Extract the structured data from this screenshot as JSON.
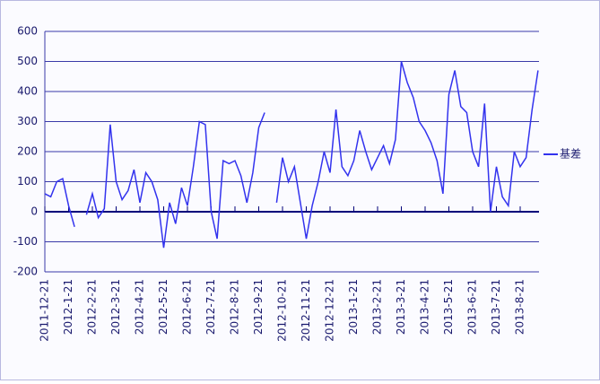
{
  "chart_data": {
    "type": "line",
    "categories": [
      "2011-12-21",
      null,
      null,
      null,
      "2012-1-21",
      null,
      null,
      null,
      "2012-2-21",
      null,
      null,
      null,
      "2012-3-21",
      null,
      null,
      null,
      "2012-4-21",
      null,
      null,
      null,
      "2012-5-21",
      null,
      null,
      null,
      "2012-6-21",
      null,
      null,
      null,
      "2012-7-21",
      null,
      null,
      null,
      "2012-8-21",
      null,
      null,
      null,
      "2012-9-21",
      null,
      null,
      null,
      "2012-10-21",
      null,
      null,
      null,
      "2012-11-21",
      null,
      null,
      null,
      "2012-12-21",
      null,
      null,
      null,
      "2013-1-21",
      null,
      null,
      null,
      "2013-2-21",
      null,
      null,
      null,
      "2013-3-21",
      null,
      null,
      null,
      "2013-4-21",
      null,
      null,
      null,
      "2013-5-21",
      null,
      null,
      null,
      "2013-6-21",
      null,
      null,
      null,
      "2013-7-21",
      null,
      null,
      null,
      "2013-8-21",
      null,
      null,
      null
    ],
    "series": [
      {
        "name": "基差",
        "color": "#3333ee",
        "values": [
          60,
          50,
          100,
          110,
          20,
          -50,
          null,
          -10,
          60,
          -20,
          10,
          290,
          100,
          40,
          70,
          140,
          30,
          130,
          100,
          40,
          -120,
          30,
          -40,
          80,
          20,
          150,
          300,
          290,
          0,
          -90,
          170,
          160,
          170,
          120,
          30,
          130,
          280,
          330,
          null,
          30,
          180,
          100,
          150,
          30,
          -90,
          20,
          100,
          200,
          130,
          340,
          150,
          120,
          170,
          270,
          200,
          140,
          180,
          220,
          160,
          240,
          500,
          430,
          380,
          300,
          270,
          230,
          170,
          60,
          390,
          470,
          350,
          330,
          200,
          150,
          360,
          0,
          150,
          50,
          20,
          200,
          150,
          180,
          340,
          470
        ]
      }
    ],
    "ylim": [
      -200,
      600
    ],
    "yticks": [
      -200,
      -100,
      0,
      100,
      200,
      300,
      400,
      500,
      600
    ],
    "grid": true,
    "legend": "right"
  }
}
